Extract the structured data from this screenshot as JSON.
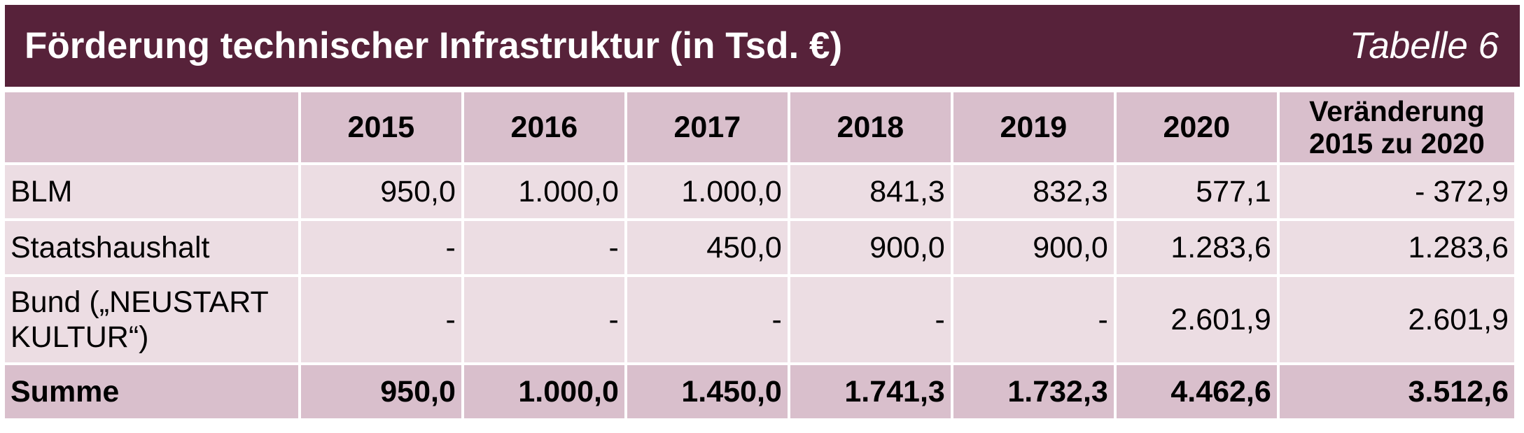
{
  "header": {
    "title": "Förderung technischer Infrastruktur (in Tsd. €)",
    "label": "Tabelle 6",
    "background_color": "#57223a"
  },
  "table": {
    "columns": [
      "",
      "2015",
      "2016",
      "2017",
      "2018",
      "2019",
      "2020",
      "Veränderung 2015 zu 2020"
    ],
    "rows": [
      {
        "label": "BLM",
        "cells": [
          "950,0",
          "1.000,0",
          "1.000,0",
          "841,3",
          "832,3",
          "577,1",
          "- 372,9"
        ]
      },
      {
        "label": "Staatshaushalt",
        "cells": [
          "-",
          "-",
          "450,0",
          "900,0",
          "900,0",
          "1.283,6",
          "1.283,6"
        ]
      },
      {
        "label": "Bund („NEUSTART KULTUR“)",
        "cells": [
          "-",
          "-",
          "-",
          "-",
          "-",
          "2.601,9",
          "2.601,9"
        ]
      }
    ],
    "total": {
      "label": "Summe",
      "cells": [
        "950,0",
        "1.000,0",
        "1.450,0",
        "1.741,3",
        "1.732,3",
        "4.462,6",
        "3.512,6"
      ]
    },
    "colors": {
      "header_cell": "#d9bfcc",
      "body_cell": "#ecdde3",
      "negative_value": "#c01b2c"
    }
  }
}
